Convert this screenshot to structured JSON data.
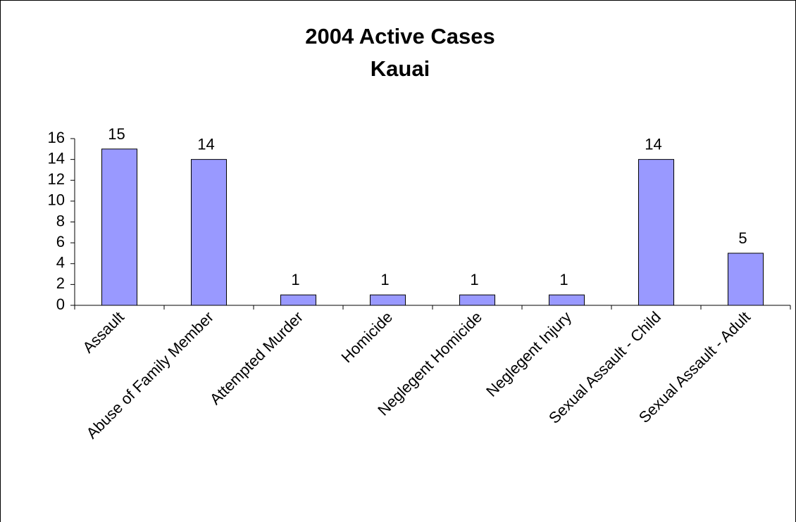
{
  "chart_data": {
    "type": "bar",
    "title": "2004 Active Cases",
    "subtitle": "Kauai",
    "categories": [
      "Assault",
      "Abuse of Family Member",
      "Attempted Murder",
      "Homicide",
      "Neglegent Homicide",
      "Neglegent Injury",
      "Sexual Assault - Child",
      "Sexual Assault - Adult"
    ],
    "values": [
      15,
      14,
      1,
      1,
      1,
      1,
      14,
      5
    ],
    "color": "#9999ff",
    "ylim": [
      0,
      16
    ],
    "yticks": [
      0,
      2,
      4,
      6,
      8,
      10,
      12,
      14,
      16
    ],
    "grid": false
  }
}
